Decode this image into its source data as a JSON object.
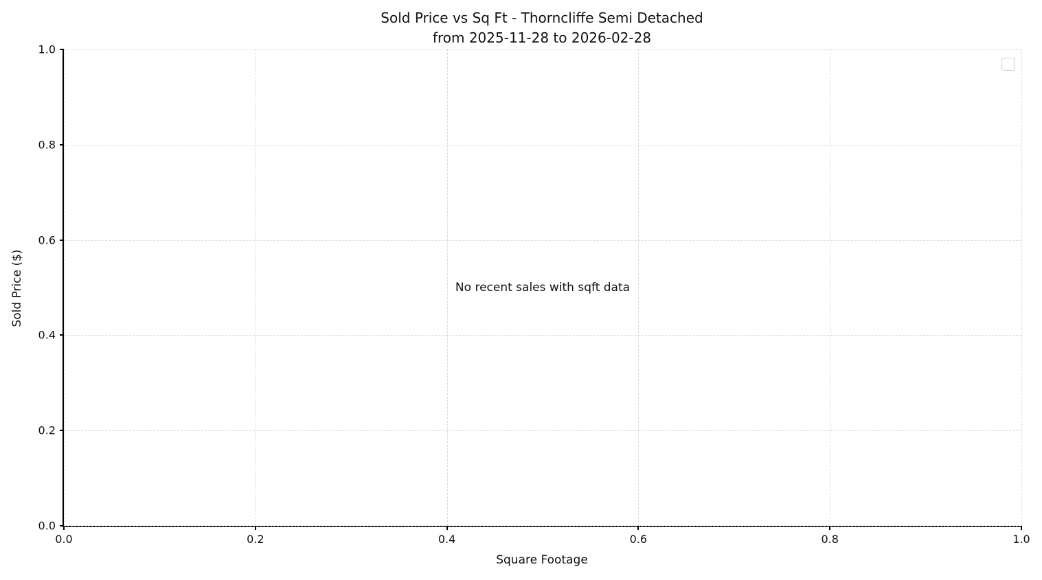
{
  "chart_data": {
    "type": "scatter",
    "title": "Sold Price vs Sq Ft - Thorncliffe Semi Detached",
    "subtitle": "from 2025-11-28 to 2026-02-28",
    "xlabel": "Square Footage",
    "ylabel": "Sold Price ($)",
    "xlim": [
      0.0,
      1.0
    ],
    "ylim": [
      0.0,
      1.0
    ],
    "x_ticks": [
      0.0,
      0.2,
      0.4,
      0.6,
      0.8,
      1.0
    ],
    "y_ticks": [
      0.0,
      0.2,
      0.4,
      0.6,
      0.8,
      1.0
    ],
    "x_tick_labels": [
      "0.0",
      "0.2",
      "0.4",
      "0.6",
      "0.8",
      "1.0"
    ],
    "y_tick_labels": [
      "0.0",
      "0.2",
      "0.4",
      "0.6",
      "0.8",
      "1.0"
    ],
    "series": [],
    "points": [],
    "annotation": "No recent sales with sqft data",
    "grid": true,
    "grid_style": "dashed",
    "legend": {
      "visible": true,
      "entries": [],
      "position": "upper right"
    },
    "colors": {
      "background": "#ffffff",
      "spine": "#000000",
      "grid": "#d9d9d9",
      "text": "#111111",
      "legend_border": "#cccccc"
    }
  }
}
